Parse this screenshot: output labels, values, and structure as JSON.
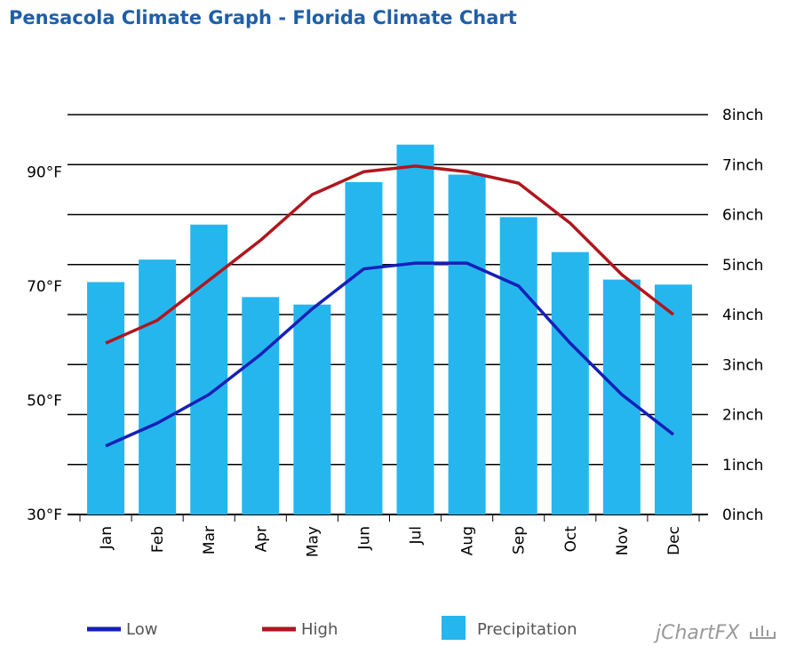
{
  "title": "Pensacola Climate Graph - Florida Climate Chart",
  "brand": "jChartFX",
  "colors": {
    "title": "#1f5fa8",
    "low": "#1520b8",
    "high": "#b0161e",
    "precip": "#25b6ee",
    "grid": "#000000"
  },
  "chart_data": {
    "type": "bar",
    "categories": [
      "Jan",
      "Feb",
      "Mar",
      "Apr",
      "May",
      "Jun",
      "Jul",
      "Aug",
      "Sep",
      "Oct",
      "Nov",
      "Dec"
    ],
    "series": [
      {
        "name": "Precipitation",
        "type": "bar",
        "axis": "right",
        "values": [
          4.65,
          5.1,
          5.8,
          4.35,
          4.2,
          6.65,
          7.4,
          6.8,
          5.95,
          5.25,
          4.7,
          4.6
        ]
      },
      {
        "name": "Low",
        "type": "line",
        "axis": "left",
        "values": [
          42,
          46,
          51,
          58,
          66,
          73,
          74,
          74,
          70,
          60,
          51,
          44
        ]
      },
      {
        "name": "High",
        "type": "line",
        "axis": "left",
        "values": [
          60,
          64,
          71,
          78,
          86,
          90,
          91,
          90,
          88,
          81,
          72,
          65
        ]
      }
    ],
    "y_left": {
      "ticks": [
        "30°F",
        "50°F",
        "70°F",
        "90°F"
      ],
      "tick_values": [
        30,
        50,
        70,
        90
      ],
      "range": [
        30,
        100
      ]
    },
    "y_right": {
      "ticks": [
        "0inch",
        "1inch",
        "2inch",
        "3inch",
        "4inch",
        "5inch",
        "6inch",
        "7inch",
        "8inch"
      ],
      "tick_values": [
        0,
        1,
        2,
        3,
        4,
        5,
        6,
        7,
        8
      ],
      "range": [
        0,
        8
      ]
    },
    "grid": true,
    "legend_position": "bottom"
  },
  "legend": [
    {
      "name": "Low"
    },
    {
      "name": "High"
    },
    {
      "name": "Precipitation"
    }
  ]
}
